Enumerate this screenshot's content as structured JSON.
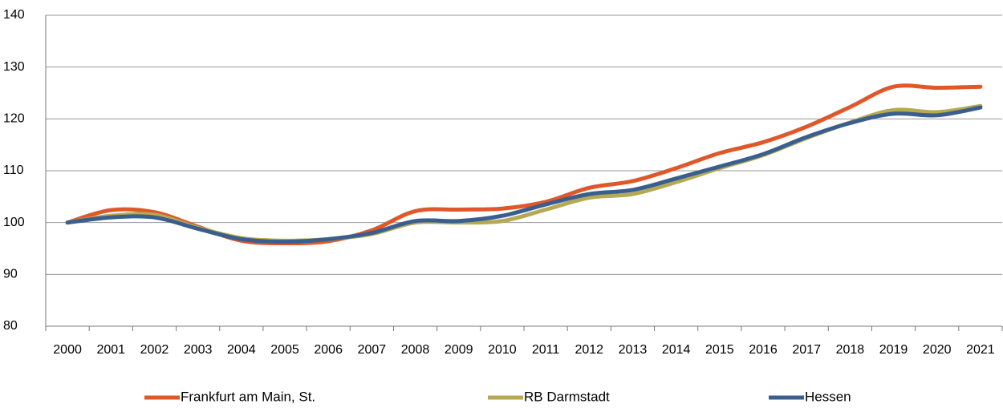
{
  "chart_data": {
    "type": "line",
    "categories": [
      "2000",
      "2001",
      "2002",
      "2003",
      "2004",
      "2005",
      "2006",
      "2007",
      "2008",
      "2009",
      "2010",
      "2011",
      "2012",
      "2013",
      "2014",
      "2015",
      "2016",
      "2017",
      "2018",
      "2019",
      "2020",
      "2021"
    ],
    "series": [
      {
        "name": "Frankfurt am Main, St.",
        "color": "#e0582a",
        "values": [
          100,
          102.4,
          102,
          99.2,
          96.5,
          96,
          96.4,
          98.5,
          102.2,
          102.5,
          102.7,
          104,
          106.7,
          108,
          110.5,
          113.4,
          115.5,
          118.5,
          122.3,
          126.2,
          126,
          126.2
        ]
      },
      {
        "name": "RB Darmstadt",
        "color": "#b5a953",
        "values": [
          100,
          101.3,
          101.5,
          99,
          97,
          96.5,
          96.8,
          97.8,
          100,
          100,
          100.3,
          102.5,
          104.8,
          105.5,
          107.8,
          110.5,
          113,
          116.3,
          119.3,
          121.7,
          121.3,
          122.5
        ]
      },
      {
        "name": "Hessen",
        "color": "#3a5f8f",
        "values": [
          100,
          101,
          101,
          98.8,
          96.8,
          96.3,
          96.8,
          98,
          100.3,
          100.3,
          101.3,
          103.5,
          105.5,
          106.3,
          108.5,
          110.8,
          113.2,
          116.5,
          119.2,
          121,
          120.7,
          122.2
        ]
      }
    ],
    "ylim": [
      80,
      140
    ],
    "yticks": [
      80,
      90,
      100,
      110,
      120,
      130,
      140
    ],
    "grid": true
  }
}
